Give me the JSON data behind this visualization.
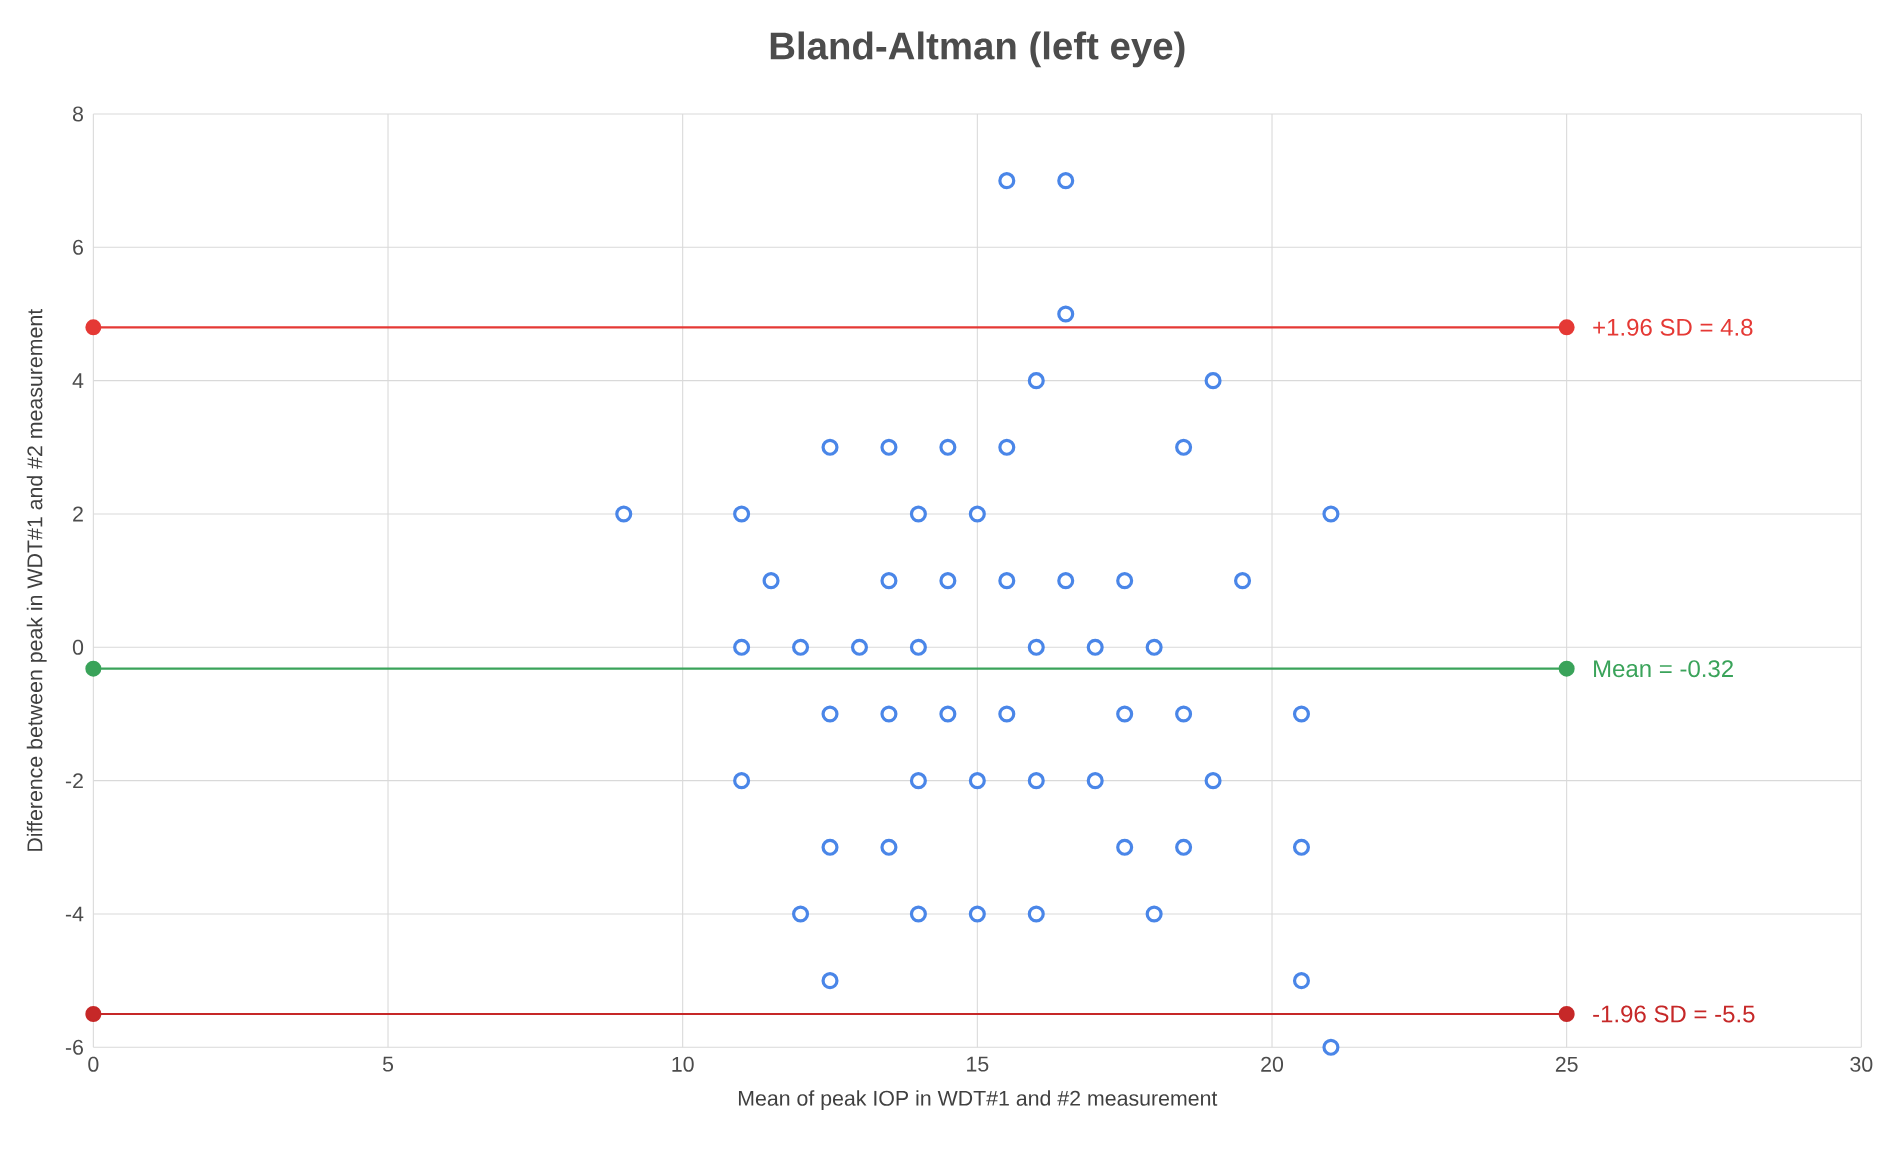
{
  "chart_data": {
    "type": "scatter",
    "title": "Bland-Altman (left eye)",
    "xlabel": "Mean of peak IOP in WDT#1 and #2 measurement",
    "ylabel": "Difference between peak in WDT#1 and #2 measurement",
    "xlim": [
      0,
      30
    ],
    "ylim": [
      -6,
      8
    ],
    "xticks": [
      0,
      5,
      10,
      15,
      20,
      25,
      30
    ],
    "yticks": [
      -6,
      -4,
      -2,
      0,
      2,
      4,
      6,
      8
    ],
    "grid": true,
    "series": [
      {
        "color": "#4a86e8",
        "marker": "circle",
        "x": [
          15.5,
          16.5,
          16.5,
          16,
          19,
          12.5,
          13.5,
          14.5,
          15.5,
          18.5,
          9,
          11,
          14,
          15,
          21,
          11.5,
          13.5,
          14.5,
          15.5,
          16.5,
          17.5,
          19.5,
          11,
          12,
          13,
          14,
          16,
          17,
          18,
          12.5,
          13.5,
          14.5,
          15.5,
          17.5,
          18.5,
          20.5,
          11,
          14,
          15,
          16,
          17,
          19,
          12.5,
          13.5,
          17.5,
          18.5,
          20.5,
          12,
          14,
          15,
          16,
          18,
          12.5,
          20.5,
          21
        ],
        "values": [
          7,
          7,
          5,
          4,
          4,
          3,
          3,
          3,
          3,
          3,
          2,
          2,
          2,
          2,
          2,
          1,
          1,
          1,
          1,
          1,
          1,
          1,
          0,
          0,
          0,
          0,
          0,
          0,
          0,
          -1,
          -1,
          -1,
          -1,
          -1,
          -1,
          -1,
          -2,
          -2,
          -2,
          -2,
          -2,
          -2,
          -3,
          -3,
          -3,
          -3,
          -3,
          -4,
          -4,
          -4,
          -4,
          -4,
          -5,
          -5,
          -6
        ]
      },
      {
        "type": "line",
        "color": "#e53935",
        "marker": "circle",
        "x": [
          0,
          25
        ],
        "values": [
          4.8,
          4.8
        ]
      },
      {
        "type": "line",
        "color": "#3aa35a",
        "marker": "circle",
        "x": [
          0,
          25
        ],
        "values": [
          -0.32,
          -0.32
        ]
      },
      {
        "type": "line",
        "color": "#c62828",
        "marker": "circle",
        "x": [
          0,
          25
        ],
        "values": [
          -5.5,
          -5.5
        ]
      }
    ],
    "annotations": [
      "+1.96 SD = 4.8",
      "Mean = -0.32",
      "-1.96 SD = -5.5"
    ]
  }
}
